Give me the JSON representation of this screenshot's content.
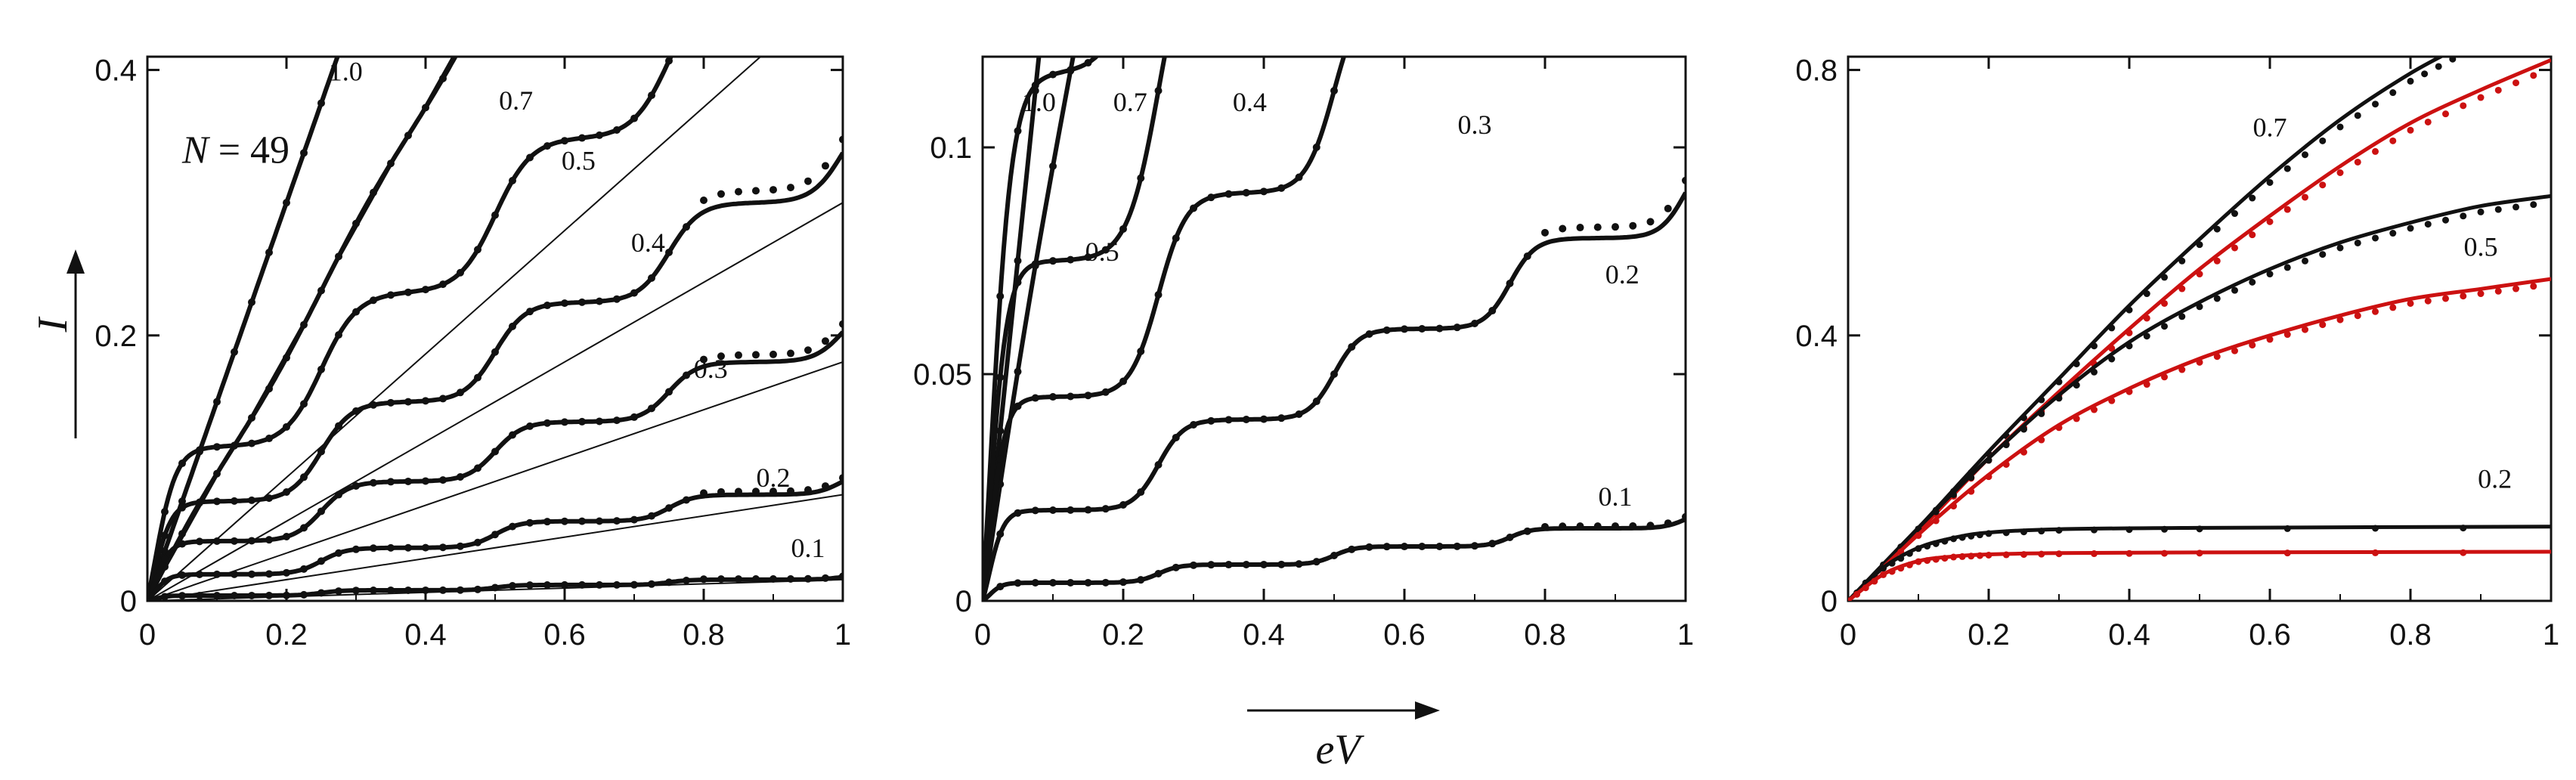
{
  "figure": {
    "ylabel": "I",
    "xlabel": "eV"
  },
  "chart_data": [
    {
      "type": "line",
      "annotation_symbol": "N",
      "annotation_value": "= 49",
      "xlim": [
        0,
        1
      ],
      "ylim": [
        0,
        0.41
      ],
      "xticks": [
        0,
        0.2,
        0.4,
        0.6,
        0.8,
        1
      ],
      "xtick_labels": [
        "0",
        "0.2",
        "0.4",
        "0.6",
        "0.8",
        "1"
      ],
      "yticks": [
        0,
        0.2,
        0.4
      ],
      "ytick_labels": [
        "0",
        "0.2",
        "0.4"
      ],
      "series": [
        {
          "label": "1.0",
          "label_at": [
            0.285,
            0.392
          ],
          "slope": 1.5,
          "plateau": 0,
          "sharp": 0,
          "thin": false,
          "dots": true,
          "color": "#111111"
        },
        {
          "label": "0.7",
          "label_at": [
            0.53,
            0.37
          ],
          "slope": 0.935,
          "plateau": 0.12,
          "sharp": 0.03,
          "thin": true,
          "dots": true,
          "color": "#111111"
        },
        {
          "label": "0.5",
          "label_at": [
            0.62,
            0.325
          ],
          "slope": 0.465,
          "plateau": 0.92,
          "sharp": 0.026,
          "thin": true,
          "dots": true,
          "color": "#111111"
        },
        {
          "label": "0.4",
          "label_at": [
            0.72,
            0.263
          ],
          "slope": 0.3,
          "plateau": 0.93,
          "sharp": 0.022,
          "thin": true,
          "dots": true,
          "color": "#111111"
        },
        {
          "label": "0.3",
          "label_at": [
            0.81,
            0.168
          ],
          "slope": 0.18,
          "plateau": 0.93,
          "sharp": 0.02,
          "thin": true,
          "dots": true,
          "color": "#111111"
        },
        {
          "label": "0.2",
          "label_at": [
            0.9,
            0.086
          ],
          "slope": 0.08,
          "plateau": 0.93,
          "sharp": 0.018,
          "thin": true,
          "dots": true,
          "color": "#111111"
        },
        {
          "label": "0.1",
          "label_at": [
            0.95,
            0.033
          ],
          "slope": 0.016,
          "plateau": 0.92,
          "sharp": 0.015,
          "thin": true,
          "dots": true,
          "color": "#111111"
        }
      ]
    },
    {
      "type": "line",
      "xlim": [
        0,
        1
      ],
      "ylim": [
        0,
        0.12
      ],
      "xticks": [
        0,
        0.2,
        0.4,
        0.6,
        0.8,
        1
      ],
      "xtick_labels": [
        "0",
        "0.2",
        "0.4",
        "0.6",
        "0.8",
        "1"
      ],
      "yticks": [
        0,
        0.05,
        0.1
      ],
      "ytick_labels": [
        "0",
        "0.05",
        "0.1"
      ],
      "series": [
        {
          "label": "1.0",
          "label_at": [
            0.08,
            0.108
          ],
          "slope": 1.5,
          "plateau": 0,
          "sharp": 0,
          "thin": false,
          "dots": true,
          "color": "#111111"
        },
        {
          "label": "0.7",
          "label_at": [
            0.21,
            0.108
          ],
          "slope": 0.935,
          "plateau": 0.12,
          "sharp": 0.03,
          "thin": false,
          "dots": true,
          "color": "#111111"
        },
        {
          "label": "0.5",
          "label_at": [
            0.17,
            0.075
          ],
          "slope": 0.465,
          "plateau": 0.92,
          "sharp": 0.026,
          "thin": false,
          "dots": true,
          "color": "#111111"
        },
        {
          "label": "0.4",
          "label_at": [
            0.38,
            0.108
          ],
          "slope": 0.3,
          "plateau": 0.93,
          "sharp": 0.022,
          "thin": false,
          "dots": true,
          "color": "#111111"
        },
        {
          "label": "0.3",
          "label_at": [
            0.7,
            0.103
          ],
          "slope": 0.18,
          "plateau": 0.93,
          "sharp": 0.02,
          "thin": false,
          "dots": true,
          "color": "#111111"
        },
        {
          "label": "0.2",
          "label_at": [
            0.91,
            0.07
          ],
          "slope": 0.08,
          "plateau": 0.93,
          "sharp": 0.018,
          "thin": false,
          "dots": true,
          "color": "#111111"
        },
        {
          "label": "0.1",
          "label_at": [
            0.9,
            0.021
          ],
          "slope": 0.016,
          "plateau": 0.92,
          "sharp": 0.015,
          "thin": false,
          "dots": true,
          "color": "#111111"
        }
      ]
    },
    {
      "type": "line",
      "xlim": [
        0,
        1
      ],
      "ylim": [
        0,
        0.82
      ],
      "xticks": [
        0,
        0.2,
        0.4,
        0.6,
        0.8,
        1
      ],
      "xtick_labels": [
        "0",
        "0.2",
        "0.4",
        "0.6",
        "0.8",
        "1"
      ],
      "yticks": [
        0,
        0.4,
        0.8
      ],
      "ytick_labels": [
        "0",
        "0.4",
        "0.8"
      ],
      "labels": [
        {
          "text": "0.7",
          "at": [
            0.6,
            0.7
          ]
        },
        {
          "text": "0.5",
          "at": [
            0.9,
            0.52
          ]
        },
        {
          "text": "0.2",
          "at": [
            0.92,
            0.17
          ]
        }
      ],
      "series": [
        {
          "name": "",
          "color": "#111111",
          "points": [
            [
              0,
              0
            ],
            [
              0.1,
              0.11
            ],
            [
              0.2,
              0.225
            ],
            [
              0.3,
              0.335
            ],
            [
              0.4,
              0.445
            ],
            [
              0.5,
              0.545
            ],
            [
              0.6,
              0.64
            ],
            [
              0.7,
              0.725
            ],
            [
              0.8,
              0.795
            ],
            [
              0.88,
              0.84
            ]
          ]
        },
        {
          "name": "",
          "color": "#cc1111",
          "points": [
            [
              0,
              0
            ],
            [
              0.1,
              0.105
            ],
            [
              0.2,
              0.215
            ],
            [
              0.3,
              0.315
            ],
            [
              0.4,
              0.41
            ],
            [
              0.5,
              0.5
            ],
            [
              0.6,
              0.58
            ],
            [
              0.7,
              0.655
            ],
            [
              0.8,
              0.72
            ],
            [
              0.9,
              0.77
            ],
            [
              1.0,
              0.815
            ]
          ]
        },
        {
          "name": "",
          "color": "#111111",
          "points": [
            [
              0,
              0
            ],
            [
              0.1,
              0.11
            ],
            [
              0.2,
              0.215
            ],
            [
              0.3,
              0.31
            ],
            [
              0.4,
              0.39
            ],
            [
              0.5,
              0.45
            ],
            [
              0.6,
              0.5
            ],
            [
              0.7,
              0.54
            ],
            [
              0.8,
              0.57
            ],
            [
              0.9,
              0.595
            ],
            [
              1.0,
              0.61
            ]
          ]
        },
        {
          "name": "",
          "color": "#cc1111",
          "points": [
            [
              0,
              0
            ],
            [
              0.1,
              0.1
            ],
            [
              0.2,
              0.19
            ],
            [
              0.3,
              0.265
            ],
            [
              0.4,
              0.32
            ],
            [
              0.5,
              0.365
            ],
            [
              0.6,
              0.4
            ],
            [
              0.7,
              0.43
            ],
            [
              0.8,
              0.455
            ],
            [
              0.9,
              0.47
            ],
            [
              1.0,
              0.485
            ]
          ]
        },
        {
          "name": "",
          "color": "#111111",
          "points": [
            [
              0,
              0
            ],
            [
              0.05,
              0.05
            ],
            [
              0.1,
              0.08
            ],
            [
              0.15,
              0.095
            ],
            [
              0.2,
              0.103
            ],
            [
              0.3,
              0.108
            ],
            [
              0.5,
              0.11
            ],
            [
              1.0,
              0.112
            ]
          ]
        },
        {
          "name": "",
          "color": "#cc1111",
          "points": [
            [
              0,
              0
            ],
            [
              0.05,
              0.04
            ],
            [
              0.1,
              0.06
            ],
            [
              0.15,
              0.067
            ],
            [
              0.2,
              0.07
            ],
            [
              0.3,
              0.072
            ],
            [
              0.5,
              0.073
            ],
            [
              1.0,
              0.074
            ]
          ]
        }
      ]
    }
  ]
}
